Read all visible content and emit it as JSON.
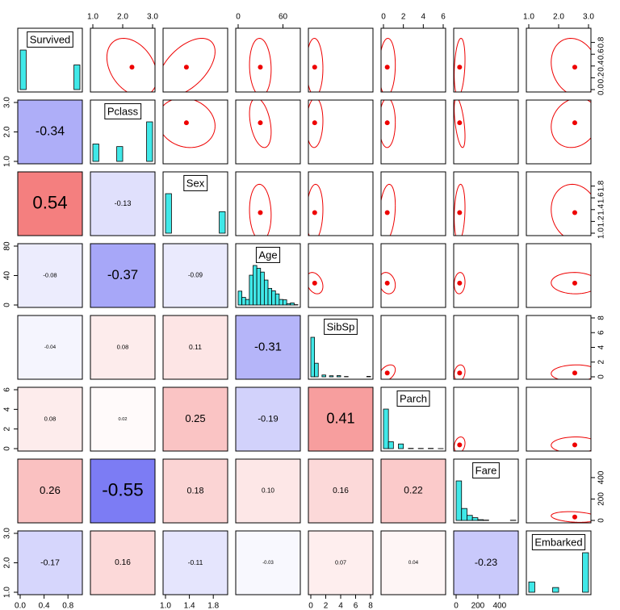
{
  "chart_data": {
    "type": "pairs",
    "variables": [
      {
        "name": "Survived",
        "lim": [
          0,
          1
        ],
        "mean": 0.38,
        "sd": 0.49,
        "xticks": [
          {
            "value": 0,
            "label": "0.0"
          },
          0.4,
          0.8
        ],
        "yticks": [
          {
            "value": 0,
            "label": "0.0"
          },
          0.2,
          0.4,
          0.6,
          0.8
        ],
        "bins": [
          0,
          0.1,
          0.2,
          0.3,
          0.4,
          0.5,
          0.6,
          0.7,
          0.8,
          0.9,
          1
        ],
        "counts": [
          549,
          0,
          0,
          0,
          0,
          0,
          0,
          0,
          0,
          342
        ]
      },
      {
        "name": "Pclass",
        "lim": [
          1,
          3
        ],
        "mean": 2.31,
        "sd": 0.84,
        "xticks": [
          {
            "value": 1,
            "label": "1.0"
          },
          {
            "value": 2,
            "label": "2.0"
          },
          {
            "value": 3,
            "label": "3.0"
          }
        ],
        "yticks": [
          {
            "value": 1,
            "label": "1.0"
          },
          {
            "value": 2,
            "label": "2.0"
          },
          {
            "value": 3,
            "label": "3.0"
          }
        ],
        "bins": [
          1,
          1.2,
          1.4,
          1.6,
          1.8,
          2,
          2.2,
          2.4,
          2.6,
          2.8,
          3
        ],
        "counts": [
          216,
          0,
          0,
          0,
          184,
          0,
          0,
          0,
          0,
          491
        ]
      },
      {
        "name": "Sex",
        "lim": [
          1,
          2
        ],
        "mean": 1.35,
        "sd": 0.48,
        "xticks": [
          {
            "value": 1,
            "label": "1.0"
          },
          1.4,
          1.8
        ],
        "yticks": [
          {
            "value": 1,
            "label": "1.0"
          },
          1.2,
          1.4,
          1.6,
          1.8
        ],
        "bins": [
          1,
          1.1,
          1.2,
          1.3,
          1.4,
          1.5,
          1.6,
          1.7,
          1.8,
          1.9,
          2
        ],
        "counts": [
          577,
          0,
          0,
          0,
          0,
          0,
          0,
          0,
          0,
          314
        ]
      },
      {
        "name": "Age",
        "lim": [
          0,
          80
        ],
        "mean": 29.7,
        "sd": 14.5,
        "xticks": [
          0,
          60
        ],
        "yticks": [
          0,
          40,
          80
        ],
        "bins": [
          0,
          5,
          10,
          15,
          20,
          25,
          30,
          35,
          40,
          45,
          50,
          55,
          60,
          65,
          70,
          75,
          80
        ],
        "counts": [
          40,
          22,
          16,
          86,
          114,
          106,
          95,
          72,
          48,
          41,
          32,
          16,
          15,
          4,
          6,
          1
        ]
      },
      {
        "name": "SibSp",
        "lim": [
          0,
          8
        ],
        "mean": 0.52,
        "sd": 1.1,
        "xticks": [
          0,
          2,
          4,
          6,
          8
        ],
        "yticks": [
          0,
          2,
          4,
          6,
          8
        ],
        "bins": [
          0,
          0.5,
          1,
          1.5,
          2,
          2.5,
          3,
          3.5,
          4,
          4.5,
          5,
          5.5,
          6,
          6.5,
          7,
          7.5,
          8
        ],
        "counts": [
          608,
          209,
          0,
          28,
          0,
          16,
          0,
          18,
          0,
          5,
          0,
          0,
          0,
          0,
          0,
          7
        ]
      },
      {
        "name": "Parch",
        "lim": [
          0,
          6
        ],
        "mean": 0.38,
        "sd": 0.81,
        "xticks": [
          0,
          2,
          4,
          6
        ],
        "yticks": [
          0,
          2,
          4,
          6
        ],
        "bins": [
          0,
          0.5,
          1,
          1.5,
          2,
          2.5,
          3,
          3.5,
          4,
          4.5,
          5,
          5.5,
          6
        ],
        "counts": [
          678,
          118,
          0,
          80,
          0,
          5,
          0,
          4,
          0,
          5,
          0,
          1
        ]
      },
      {
        "name": "Fare",
        "lim": [
          0,
          550
        ],
        "mean": 32.2,
        "sd": 49.7,
        "xticks": [
          0,
          200,
          400
        ],
        "yticks": [
          0,
          200,
          400
        ],
        "bins": [
          0,
          50,
          100,
          150,
          200,
          250,
          300,
          350,
          400,
          450,
          500,
          550
        ],
        "counts": [
          562,
          170,
          72,
          39,
          11,
          5,
          0,
          0,
          0,
          0,
          3
        ]
      },
      {
        "name": "Embarked",
        "lim": [
          1,
          3
        ],
        "mean": 2.54,
        "sd": 0.79,
        "xticks": [
          {
            "value": 1,
            "label": "1.0"
          },
          {
            "value": 2,
            "label": "2.0"
          },
          {
            "value": 3,
            "label": "3.0"
          }
        ],
        "yticks": [
          {
            "value": 1,
            "label": "1.0"
          },
          {
            "value": 2,
            "label": "2.0"
          },
          {
            "value": 3,
            "label": "3.0"
          }
        ],
        "bins": [
          1,
          1.2,
          1.4,
          1.6,
          1.8,
          2,
          2.2,
          2.4,
          2.6,
          2.8,
          3
        ],
        "counts": [
          168,
          0,
          0,
          0,
          77,
          0,
          0,
          0,
          0,
          644
        ]
      }
    ],
    "correlations": [
      [
        -0.34
      ],
      [
        0.54,
        -0.13
      ],
      [
        -0.08,
        -0.37,
        -0.09
      ],
      [
        -0.04,
        0.08,
        0.11,
        -0.31
      ],
      [
        0.08,
        0.02,
        0.25,
        -0.19,
        0.41
      ],
      [
        0.26,
        -0.55,
        0.18,
        0.1,
        0.16,
        0.22
      ],
      [
        -0.17,
        0.16,
        -0.11,
        -0.03,
        0.07,
        0.04,
        -0.23
      ]
    ],
    "correlation_labels": [
      [
        "-0.34"
      ],
      [
        "0.54",
        "-0.13"
      ],
      [
        "-0.08",
        "-0.37",
        "-0.09"
      ],
      [
        "-0.04",
        "0.08",
        "0.11",
        "-0.31"
      ],
      [
        "0.08",
        "0.02",
        "0.25",
        "-0.19",
        "0.41"
      ],
      [
        "0.26",
        "-0.55",
        "0.18",
        "0.10",
        "0.16",
        "0.22"
      ],
      [
        "-0.17",
        "0.16",
        "-0.11",
        "-0.03",
        "0.07",
        "0.04",
        "-0.23"
      ]
    ],
    "positive_color": "#ee3030",
    "negative_color": "#3030ee",
    "hist_color": "#40e8e8",
    "ellipse_color": "#ee0000"
  }
}
